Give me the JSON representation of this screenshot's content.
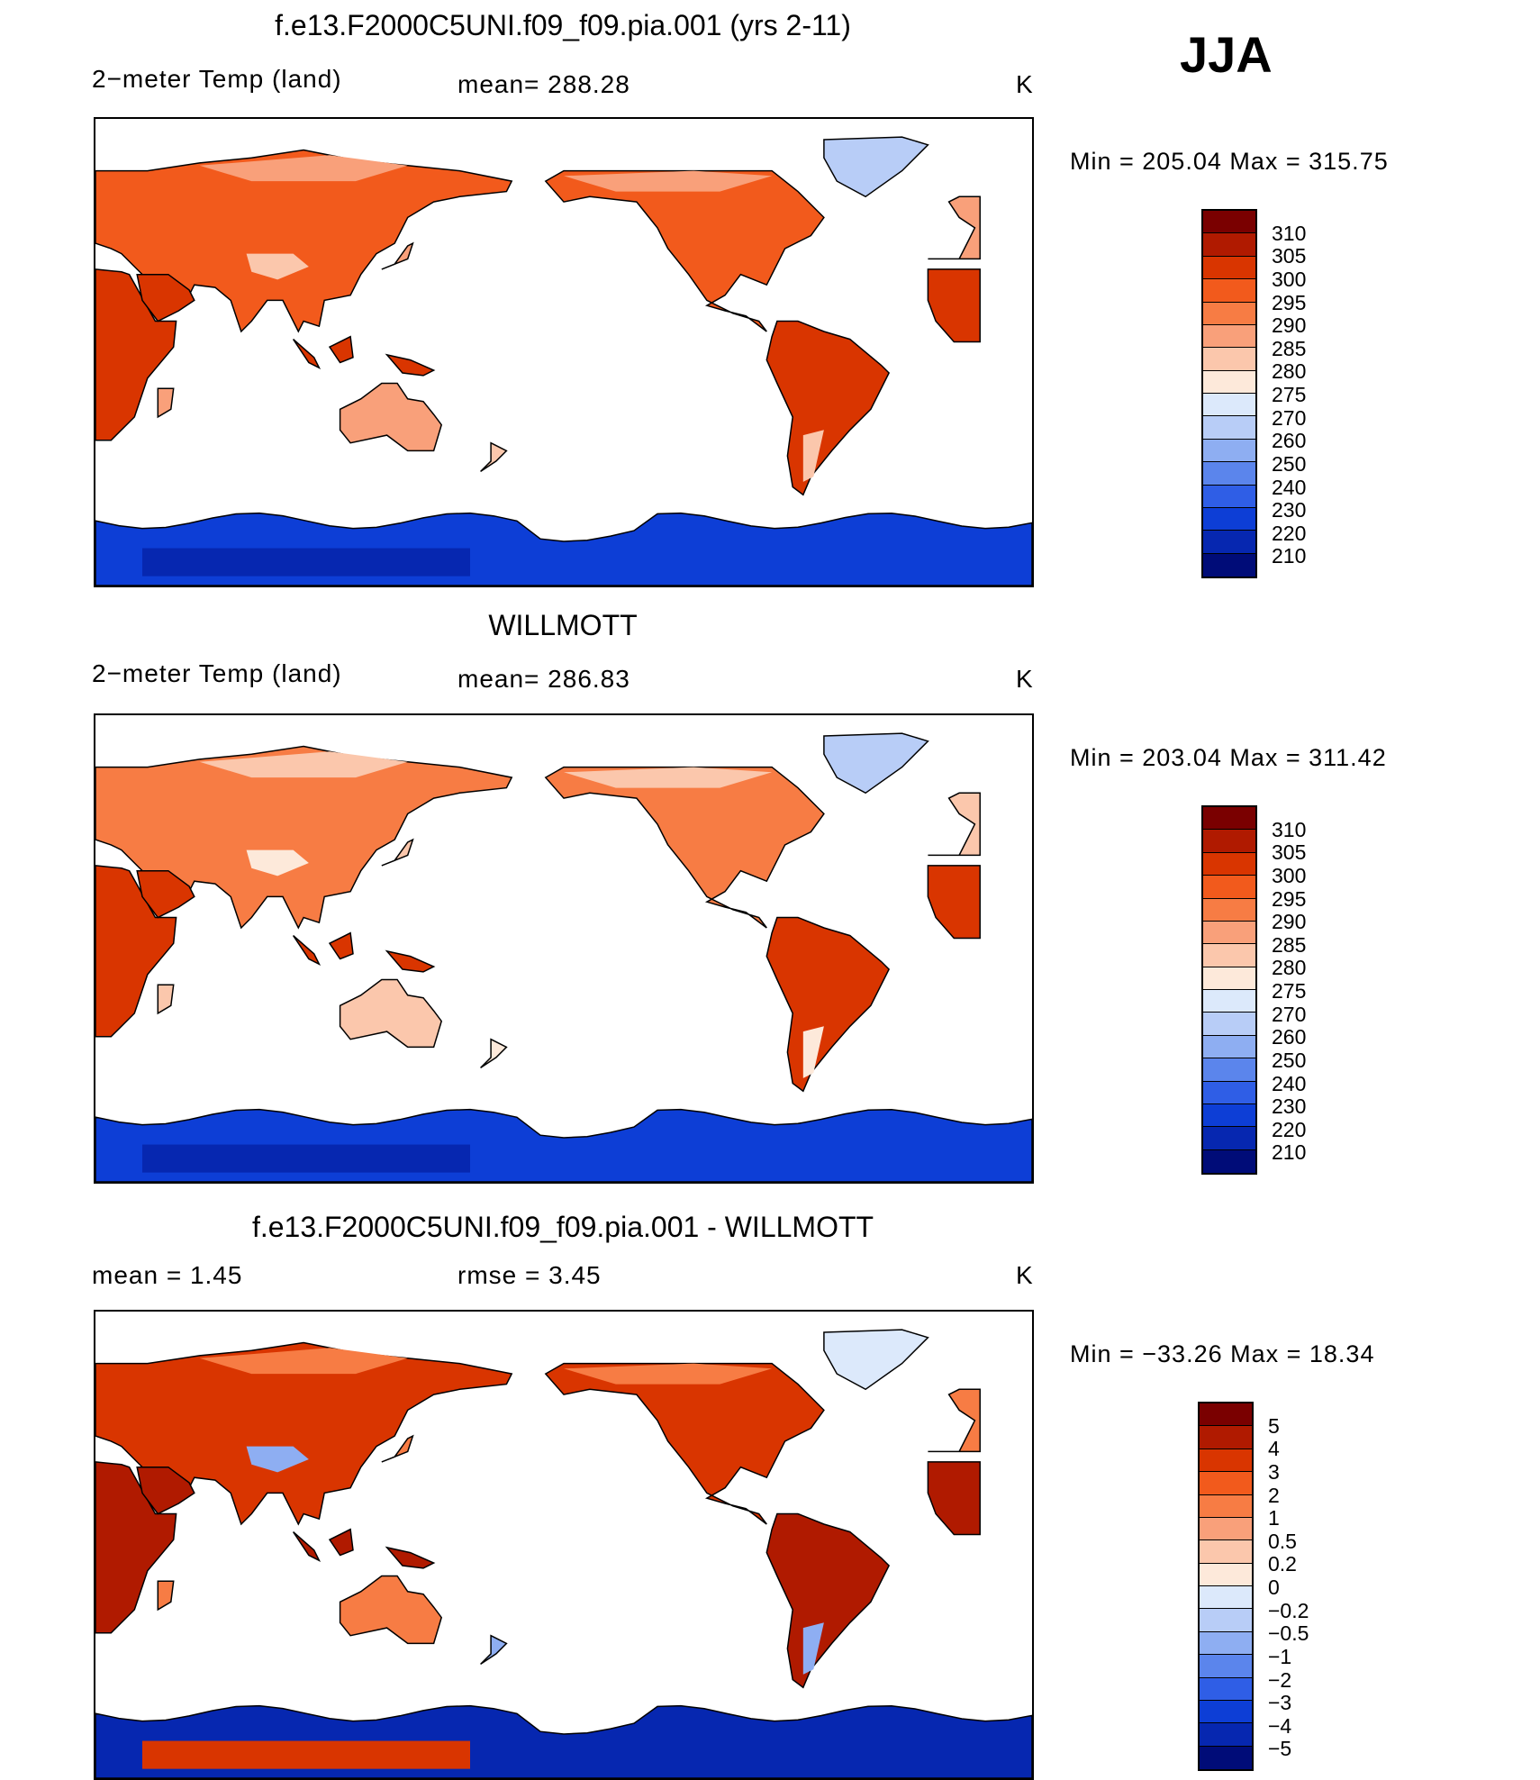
{
  "season": "JJA",
  "panels": [
    {
      "title": "f.e13.F2000C5UNI.f09_f09.pia.001 (yrs 2-11)",
      "variable": "2−meter Temp (land)",
      "stat1": "mean=  288.28",
      "stat2": "",
      "units": "K",
      "minmax": "Min  =  205.04  Max  =  315.75",
      "scale": "abs",
      "land_tint": "warm"
    },
    {
      "title": "WILLMOTT",
      "variable": "2−meter Temp (land)",
      "stat1": "mean=  286.83",
      "stat2": "",
      "units": "K",
      "minmax": "Min  =  203.04  Max  =  311.42",
      "scale": "abs",
      "land_tint": "cooler"
    },
    {
      "title": "f.e13.F2000C5UNI.f09_f09.pia.001 - WILLMOTT",
      "variable": "",
      "stat1": "mean  =       1.45",
      "stat2": "rmse  =       3.45",
      "units": "K",
      "minmax": "Min  =  −33.26  Max  =      18.34",
      "scale": "diff",
      "land_tint": "diff"
    }
  ],
  "colorbars": {
    "abs": {
      "labels": [
        "310",
        "305",
        "300",
        "295",
        "290",
        "285",
        "280",
        "275",
        "270",
        "260",
        "250",
        "240",
        "230",
        "220",
        "210"
      ],
      "colors": [
        "#7a0000",
        "#b01a00",
        "#d93500",
        "#f25a1c",
        "#f77c44",
        "#f9a07a",
        "#fbc7ac",
        "#fde9da",
        "#dce9fb",
        "#b8cdf7",
        "#8eaef2",
        "#5b85ec",
        "#2f5ee6",
        "#0d3ed6",
        "#0627b0",
        "#000c78"
      ]
    },
    "diff": {
      "labels": [
        "5",
        "4",
        "3",
        "2",
        "1",
        "0.5",
        "0.2",
        "0",
        "−0.2",
        "−0.5",
        "−1",
        "−2",
        "−3",
        "−4",
        "−5"
      ],
      "colors": [
        "#7a0000",
        "#b01a00",
        "#d93500",
        "#f25a1c",
        "#f77c44",
        "#f9a07a",
        "#fbc7ac",
        "#fde9da",
        "#dce9fb",
        "#b8cdf7",
        "#8eaef2",
        "#5b85ec",
        "#2f5ee6",
        "#0d3ed6",
        "#0627b0",
        "#000c78"
      ]
    }
  },
  "colors": {
    "ocean": "#ffffff",
    "coast": "#000000",
    "antarctic": "#0a3ed0",
    "antarctic_deep": "#0627b0"
  }
}
